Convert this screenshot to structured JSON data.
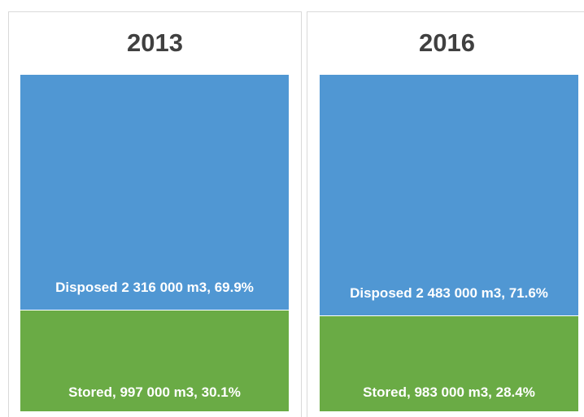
{
  "chart_data": [
    {
      "type": "stacked-bar",
      "title": "2013",
      "ylim": [
        0,
        100
      ],
      "series": [
        {
          "color": "#5097d3",
          "values": [
            69.9
          ],
          "value_labels": [
            "Disposed 2 316 000 m3, 69.9%"
          ]
        },
        {
          "color": "#6aab45",
          "values": [
            30.1
          ],
          "value_labels": [
            "Stored, 997 000 m3, 30.1%"
          ]
        }
      ]
    },
    {
      "type": "stacked-bar",
      "title": "2016",
      "ylim": [
        0,
        100
      ],
      "series": [
        {
          "color": "#5097d3",
          "values": [
            71.6
          ],
          "value_labels": [
            "Disposed 2 483 000 m3, 71.6%"
          ]
        },
        {
          "color": "#6aab45",
          "values": [
            28.4
          ],
          "value_labels": [
            "Stored, 983 000 m3, 28.4%"
          ]
        }
      ]
    }
  ]
}
